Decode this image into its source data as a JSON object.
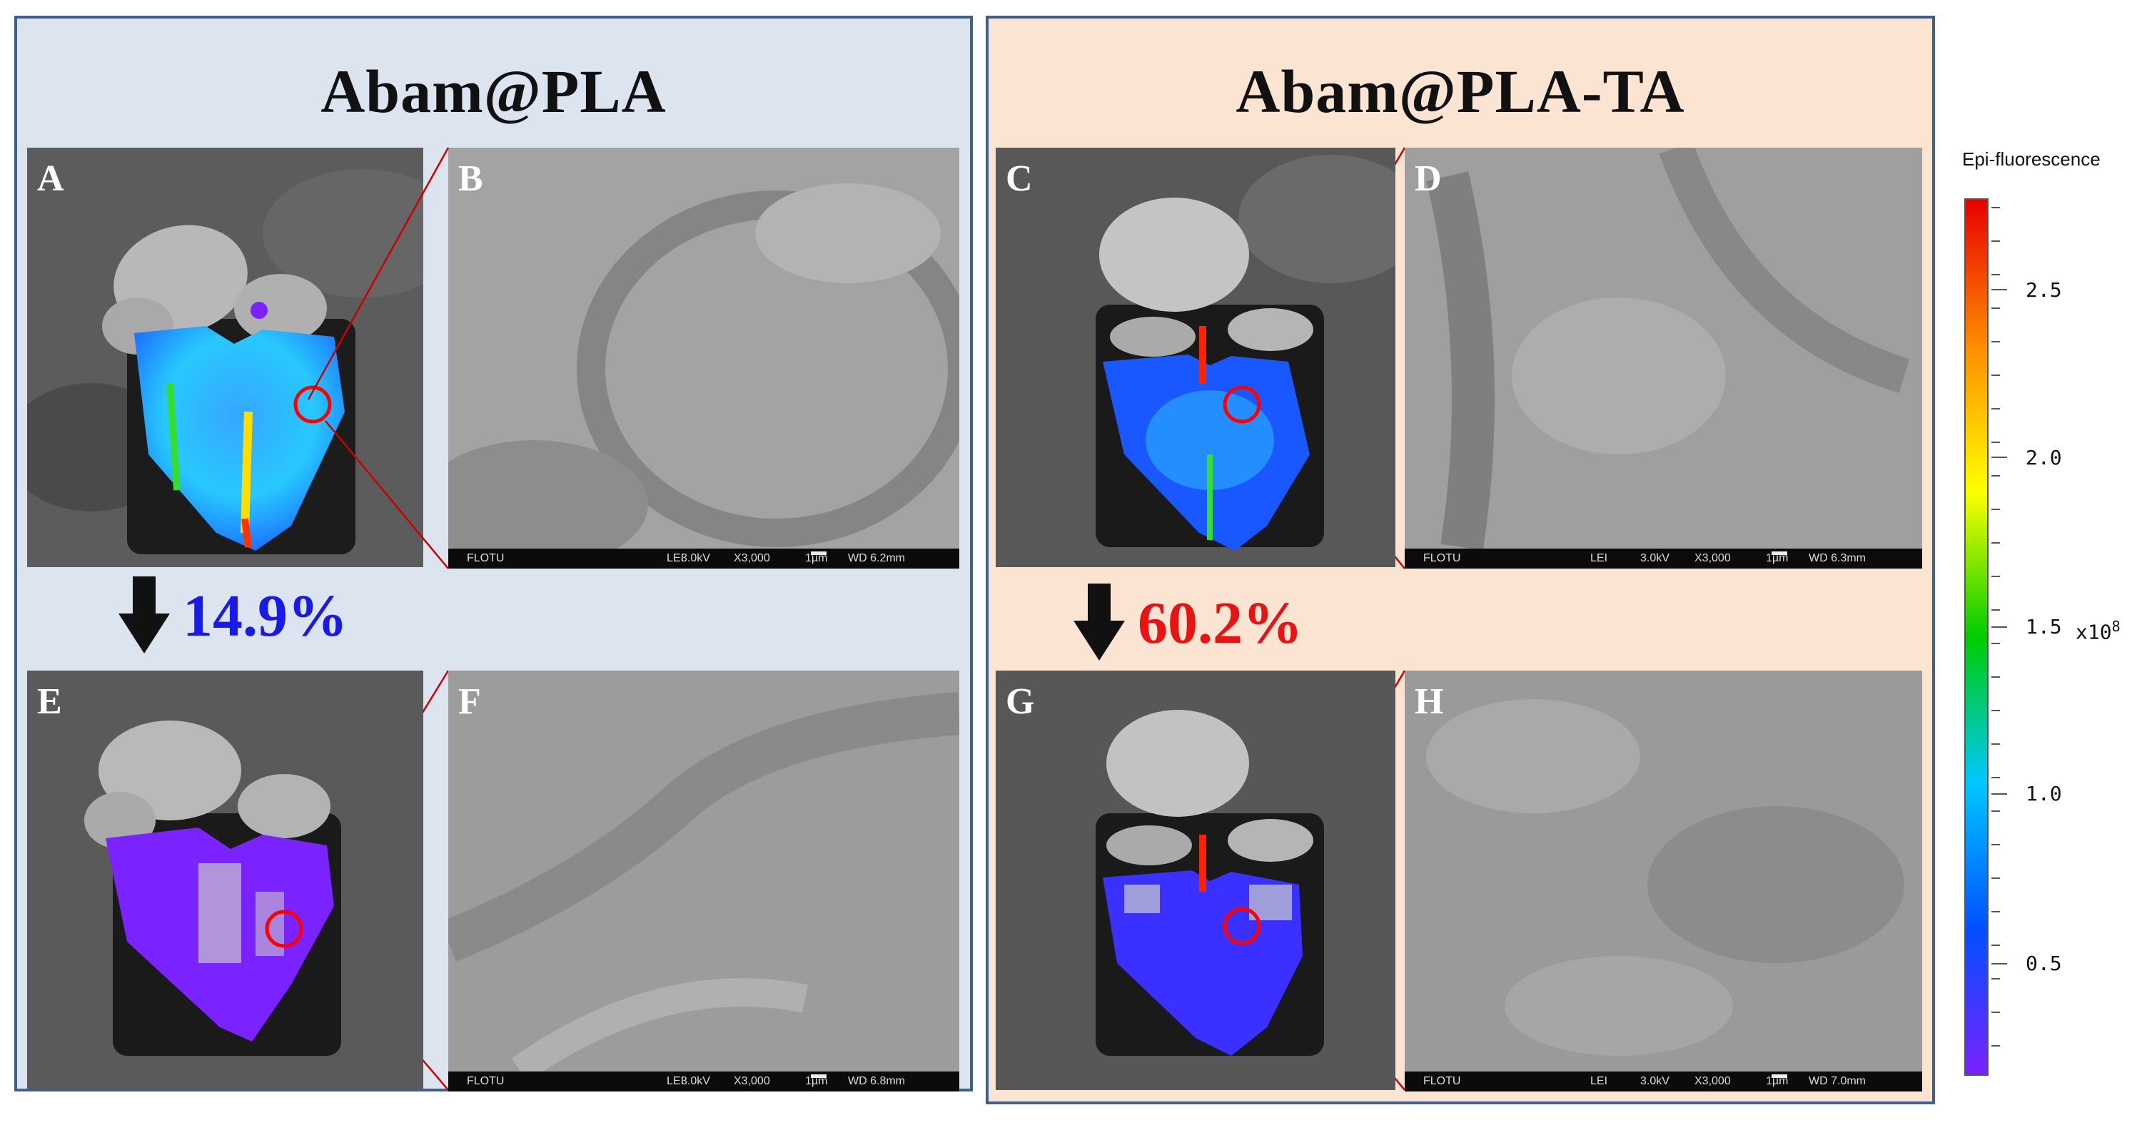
{
  "groups": [
    {
      "title": "Abam@PLA",
      "reduction": "14.9%",
      "reduction_color": "#1a1ae6"
    },
    {
      "title": "Abam@PLA-TA",
      "reduction": "60.2%",
      "reduction_color": "#e61414"
    }
  ],
  "panels": {
    "A": {
      "letter": "A"
    },
    "B": {
      "letter": "B",
      "bar": {
        "org": "FLOTU",
        "mode": "LEI",
        "kv": "3.0kV",
        "mag": "X3,000",
        "scale": "1µm",
        "wd": "WD 6.2mm"
      }
    },
    "C": {
      "letter": "C"
    },
    "D": {
      "letter": "D",
      "bar": {
        "org": "FLOTU",
        "mode": "LEI",
        "kv": "3.0kV",
        "mag": "X3,000",
        "scale": "1µm",
        "wd": "WD 6.3mm"
      }
    },
    "E": {
      "letter": "E"
    },
    "F": {
      "letter": "F",
      "bar": {
        "org": "FLOTU",
        "mode": "LEI",
        "kv": "3.0kV",
        "mag": "X3,000",
        "scale": "1µm",
        "wd": "WD 6.8mm"
      }
    },
    "G": {
      "letter": "G"
    },
    "H": {
      "letter": "H",
      "bar": {
        "org": "FLOTU",
        "mode": "LEI",
        "kv": "3.0kV",
        "mag": "X3,000",
        "scale": "1µm",
        "wd": "WD 7.0mm"
      }
    }
  },
  "colorbar": {
    "title": "Epi-fluorescence",
    "ticks": [
      "2.5",
      "2.0",
      "1.5",
      "1.0",
      "0.5"
    ],
    "exponent_base": "x10",
    "exponent": "8",
    "colors": [
      "#e60000",
      "#ff8c00",
      "#ffff00",
      "#00cc00",
      "#00c8ff",
      "#0050ff",
      "#7a22ff"
    ]
  }
}
